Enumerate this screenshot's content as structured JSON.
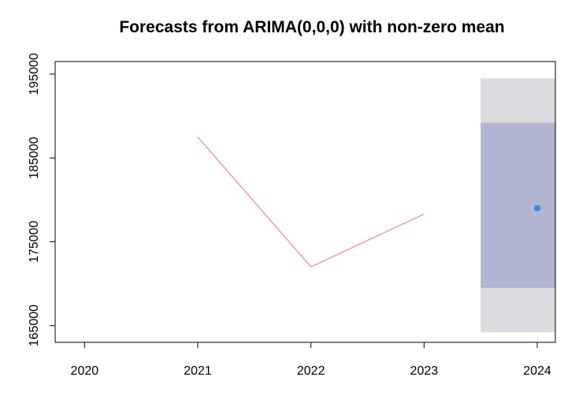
{
  "chart_data": {
    "type": "line",
    "title": "Forecasts from ARIMA(0,0,0) with non-zero mean",
    "xlabel": "",
    "ylabel": "",
    "x_ticks": [
      2020,
      2021,
      2022,
      2023,
      2024
    ],
    "x_tick_labels": [
      "2020",
      "2021",
      "2022",
      "2023",
      "2024"
    ],
    "y_ticks": [
      165000,
      175000,
      185000,
      195000
    ],
    "y_tick_labels": [
      "165000",
      "175000",
      "185000",
      "195000"
    ],
    "xlim": [
      2019.74,
      2024.16
    ],
    "ylim": [
      163000,
      196500
    ],
    "grid": false,
    "series": [
      {
        "name": "observed",
        "color": "#e88ea0",
        "x": [
          2021,
          2022,
          2023
        ],
        "y": [
          187500,
          172000,
          178300
        ]
      }
    ],
    "forecast": {
      "x": 2024,
      "point": 179000,
      "point_color": "#2e8ee0",
      "interval_x": [
        2023.5,
        2024.16
      ],
      "lo80": 169500,
      "hi80": 189200,
      "lo95": 164200,
      "hi95": 194500,
      "color80": "#b2b5d1",
      "color95": "#dbdbe0"
    }
  }
}
